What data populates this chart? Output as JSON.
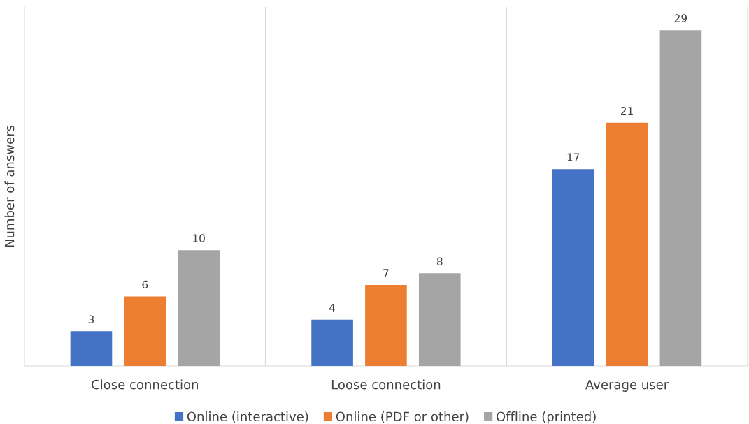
{
  "chart_data": {
    "type": "bar",
    "ylabel": "Number of answers",
    "categories": [
      "Close connection",
      "Loose connection",
      "Average user"
    ],
    "series": [
      {
        "name": "Online (interactive)",
        "color": "#4472c4",
        "values": [
          3,
          4,
          17
        ]
      },
      {
        "name": "Online (PDF or other)",
        "color": "#ed7d31",
        "values": [
          6,
          7,
          21
        ]
      },
      {
        "name": "Offline (printed)",
        "color": "#a5a5a5",
        "values": [
          10,
          8,
          29
        ]
      }
    ],
    "ylim": [
      0,
      31
    ],
    "tick_labels": "x",
    "data_labels": true,
    "grid": "x",
    "legend": "bottom"
  }
}
